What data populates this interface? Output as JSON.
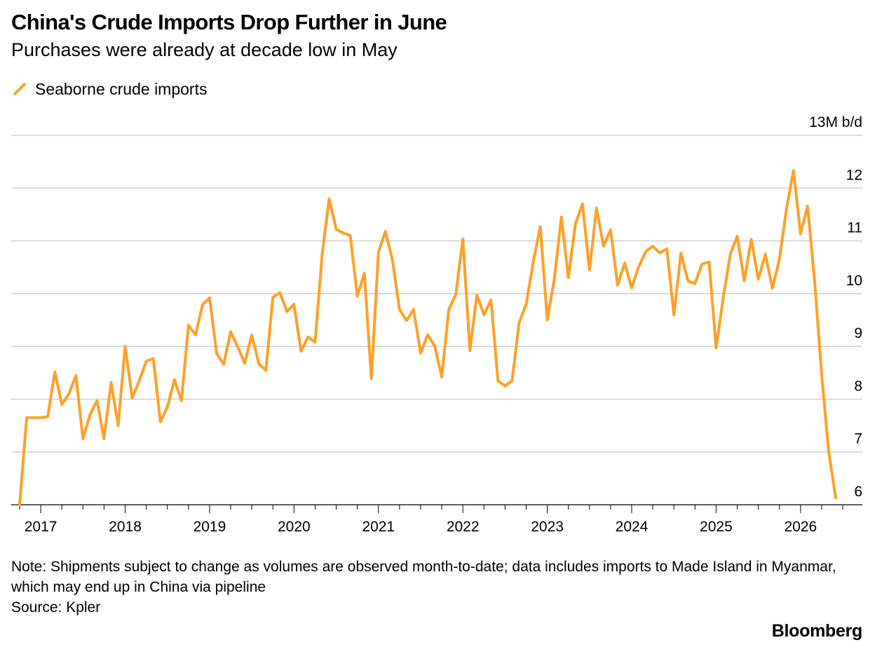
{
  "title": "China's Crude Imports Drop Further in June",
  "subtitle": "Purchases were already at decade low in May",
  "note": "Note: Shipments subject to change as volumes are observed month-to-date; data includes imports to Made Island in Myanmar, which may end up in China via pipeline",
  "source": "Source: Kpler",
  "brand": "Bloomberg",
  "colors": {
    "series": "#FFA028",
    "grid": "#d0d0d0",
    "axis": "#000000"
  },
  "chart_data": {
    "type": "line",
    "title": "China's Crude Imports Drop Further in June",
    "subtitle": "Purchases were already at decade low in May",
    "ylabel": "13M b/d",
    "ylim": [
      6,
      13
    ],
    "yticks": [
      6,
      7,
      8,
      9,
      10,
      11,
      12,
      13
    ],
    "ytick_labels": [
      "6",
      "7",
      "8",
      "9",
      "10",
      "11",
      "12",
      "13M b/d"
    ],
    "xlim": [
      "2016-09",
      "2026-07"
    ],
    "xticks": [
      "2017-01",
      "2018-01",
      "2019-01",
      "2020-01",
      "2021-01",
      "2022-01",
      "2023-01",
      "2024-01",
      "2025-01",
      "2026-01"
    ],
    "xtick_labels": [
      "2017",
      "2018",
      "2019",
      "2020",
      "2021",
      "2022",
      "2023",
      "2024",
      "2025",
      "2026"
    ],
    "grid": true,
    "legend_position": "top-left",
    "series": [
      {
        "name": "Seaborne crude imports",
        "color": "#FFA028",
        "x": [
          "2016-10",
          "2016-11",
          "2016-12",
          "2017-01",
          "2017-02",
          "2017-03",
          "2017-04",
          "2017-05",
          "2017-06",
          "2017-07",
          "2017-08",
          "2017-09",
          "2017-10",
          "2017-11",
          "2017-12",
          "2018-01",
          "2018-02",
          "2018-03",
          "2018-04",
          "2018-05",
          "2018-06",
          "2018-07",
          "2018-08",
          "2018-09",
          "2018-10",
          "2018-11",
          "2018-12",
          "2019-01",
          "2019-02",
          "2019-03",
          "2019-04",
          "2019-05",
          "2019-06",
          "2019-07",
          "2019-08",
          "2019-09",
          "2019-10",
          "2019-11",
          "2019-12",
          "2020-01",
          "2020-02",
          "2020-03",
          "2020-04",
          "2020-05",
          "2020-06",
          "2020-07",
          "2020-08",
          "2020-09",
          "2020-10",
          "2020-11",
          "2020-12",
          "2021-01",
          "2021-02",
          "2021-03",
          "2021-04",
          "2021-05",
          "2021-06",
          "2021-07",
          "2021-08",
          "2021-09",
          "2021-10",
          "2021-11",
          "2021-12",
          "2022-01",
          "2022-02",
          "2022-03",
          "2022-04",
          "2022-05",
          "2022-06",
          "2022-07",
          "2022-08",
          "2022-09",
          "2022-10",
          "2022-11",
          "2022-12",
          "2023-01",
          "2023-02",
          "2023-03",
          "2023-04",
          "2023-05",
          "2023-06",
          "2023-07",
          "2023-08",
          "2023-09",
          "2023-10",
          "2023-11",
          "2023-12",
          "2024-01",
          "2024-02",
          "2024-03",
          "2024-04",
          "2024-05",
          "2024-06",
          "2024-07",
          "2024-08",
          "2024-09",
          "2024-10",
          "2024-11",
          "2024-12",
          "2025-01",
          "2025-02",
          "2025-03",
          "2025-04",
          "2025-05",
          "2025-06",
          "2025-07",
          "2025-08",
          "2025-09",
          "2025-10",
          "2025-11",
          "2025-12",
          "2026-01",
          "2026-02",
          "2026-03",
          "2026-04",
          "2026-05",
          "2026-06"
        ],
        "values": [
          6.0,
          7.65,
          7.65,
          7.65,
          7.67,
          8.52,
          7.9,
          8.1,
          8.45,
          7.25,
          7.7,
          7.97,
          7.25,
          8.32,
          7.5,
          9.0,
          8.02,
          8.35,
          8.72,
          8.77,
          7.57,
          7.85,
          8.37,
          7.97,
          9.4,
          9.22,
          9.79,
          9.92,
          8.87,
          8.66,
          9.28,
          8.99,
          8.68,
          9.22,
          8.67,
          8.55,
          9.93,
          10.02,
          9.66,
          9.8,
          8.91,
          9.18,
          9.08,
          10.75,
          11.8,
          11.22,
          11.15,
          11.1,
          9.95,
          10.39,
          8.39,
          10.79,
          11.18,
          10.63,
          9.7,
          9.49,
          9.7,
          8.87,
          9.22,
          9.01,
          8.42,
          9.7,
          9.98,
          11.04,
          8.92,
          9.97,
          9.6,
          9.88,
          8.35,
          8.25,
          8.35,
          9.45,
          9.8,
          10.59,
          11.27,
          9.5,
          10.27,
          11.45,
          10.3,
          11.32,
          11.7,
          10.45,
          11.62,
          10.9,
          11.21,
          10.16,
          10.58,
          10.11,
          10.51,
          10.8,
          10.9,
          10.77,
          10.85,
          9.6,
          10.77,
          10.24,
          10.19,
          10.56,
          10.6,
          8.97,
          9.91,
          10.74,
          11.09,
          10.24,
          11.03,
          10.27,
          10.75,
          10.1,
          10.65,
          11.61,
          12.33,
          11.13,
          11.66,
          10.24,
          8.47,
          7.0,
          6.13
        ]
      }
    ]
  }
}
